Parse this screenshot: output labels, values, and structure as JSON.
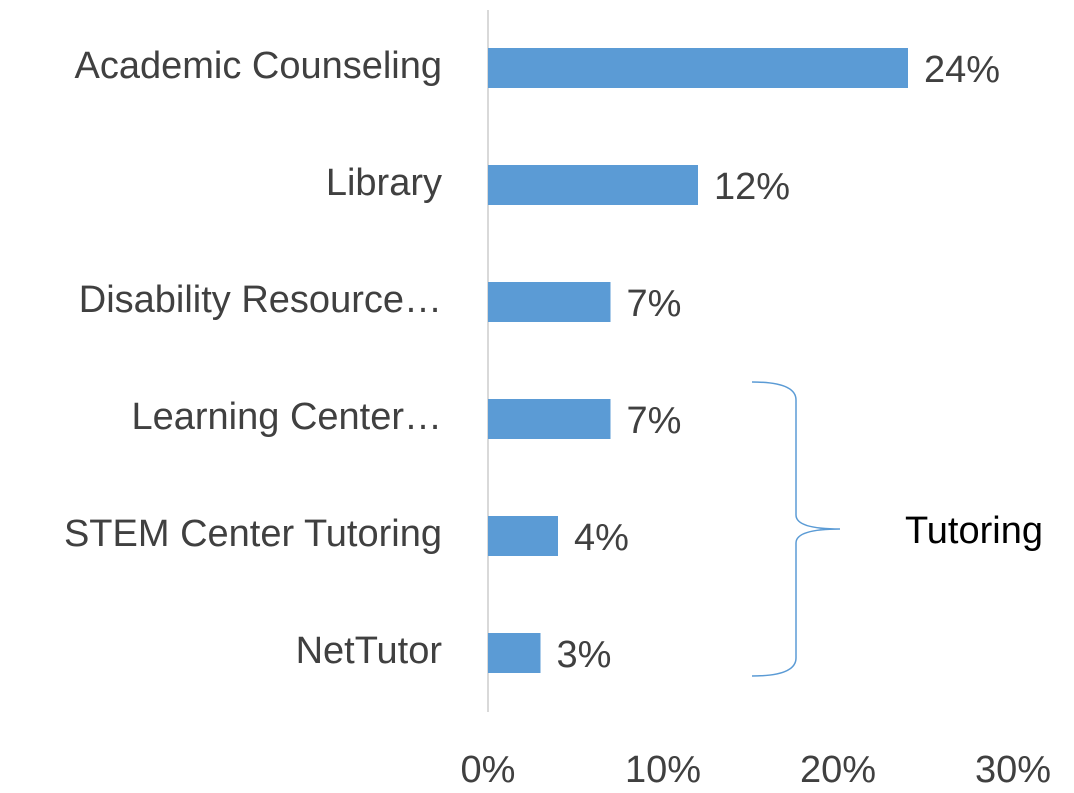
{
  "chart_data": {
    "type": "bar",
    "orientation": "horizontal",
    "categories": [
      "Academic Counseling",
      "Library",
      "Disability Resource…",
      "Learning Center…",
      "STEM Center Tutoring",
      "NetTutor"
    ],
    "values": [
      24,
      12,
      7,
      7,
      4,
      3
    ],
    "value_labels": [
      "24%",
      "12%",
      "7%",
      "7%",
      "4%",
      "3%"
    ],
    "color": "#5b9bd5",
    "xlim": [
      0,
      30
    ],
    "xticks": [
      {
        "value": 0,
        "label": "0%"
      },
      {
        "value": 10,
        "label": "10%"
      },
      {
        "value": 20,
        "label": "20%"
      },
      {
        "value": 30,
        "label": "30%"
      }
    ],
    "grid": false,
    "annotation": "Tutoring"
  }
}
